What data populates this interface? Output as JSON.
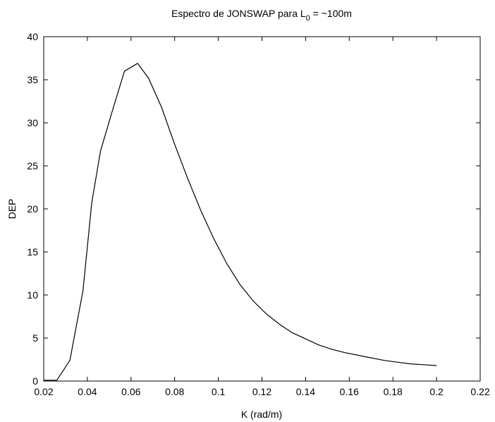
{
  "chart_data": {
    "type": "line",
    "title": {
      "prefix": "Espectro de JONSWAP para L",
      "subscript": "0",
      "suffix": " = ~100m"
    },
    "xlabel": "K (rad/m)",
    "ylabel": "DEP",
    "xlim": [
      0.02,
      0.22
    ],
    "ylim": [
      0,
      40
    ],
    "xticks": [
      "0.02",
      "0.04",
      "0.06",
      "0.08",
      "0.1",
      "0.12",
      "0.14",
      "0.16",
      "0.18",
      "0.2",
      "0.22"
    ],
    "yticks": [
      "0",
      "5",
      "10",
      "15",
      "20",
      "25",
      "30",
      "35",
      "40"
    ],
    "grid": false,
    "line_color": "#000000",
    "series": [
      {
        "x": [
          0.02,
          0.026,
          0.032,
          0.038,
          0.042,
          0.046,
          0.051,
          0.057,
          0.063,
          0.068,
          0.074,
          0.08,
          0.086,
          0.092,
          0.098,
          0.104,
          0.11,
          0.116,
          0.122,
          0.128,
          0.134,
          0.14,
          0.146,
          0.152,
          0.158,
          0.164,
          0.17,
          0.176,
          0.182,
          0.188,
          0.194,
          0.2
        ],
        "y": [
          0.1,
          0.1,
          2.4,
          10.5,
          20.7,
          26.7,
          31.0,
          36.0,
          36.9,
          35.2,
          31.8,
          27.5,
          23.5,
          19.8,
          16.5,
          13.6,
          11.2,
          9.3,
          7.8,
          6.6,
          5.6,
          4.9,
          4.2,
          3.7,
          3.3,
          3.0,
          2.7,
          2.4,
          2.2,
          2.0,
          1.9,
          1.8
        ]
      }
    ]
  }
}
